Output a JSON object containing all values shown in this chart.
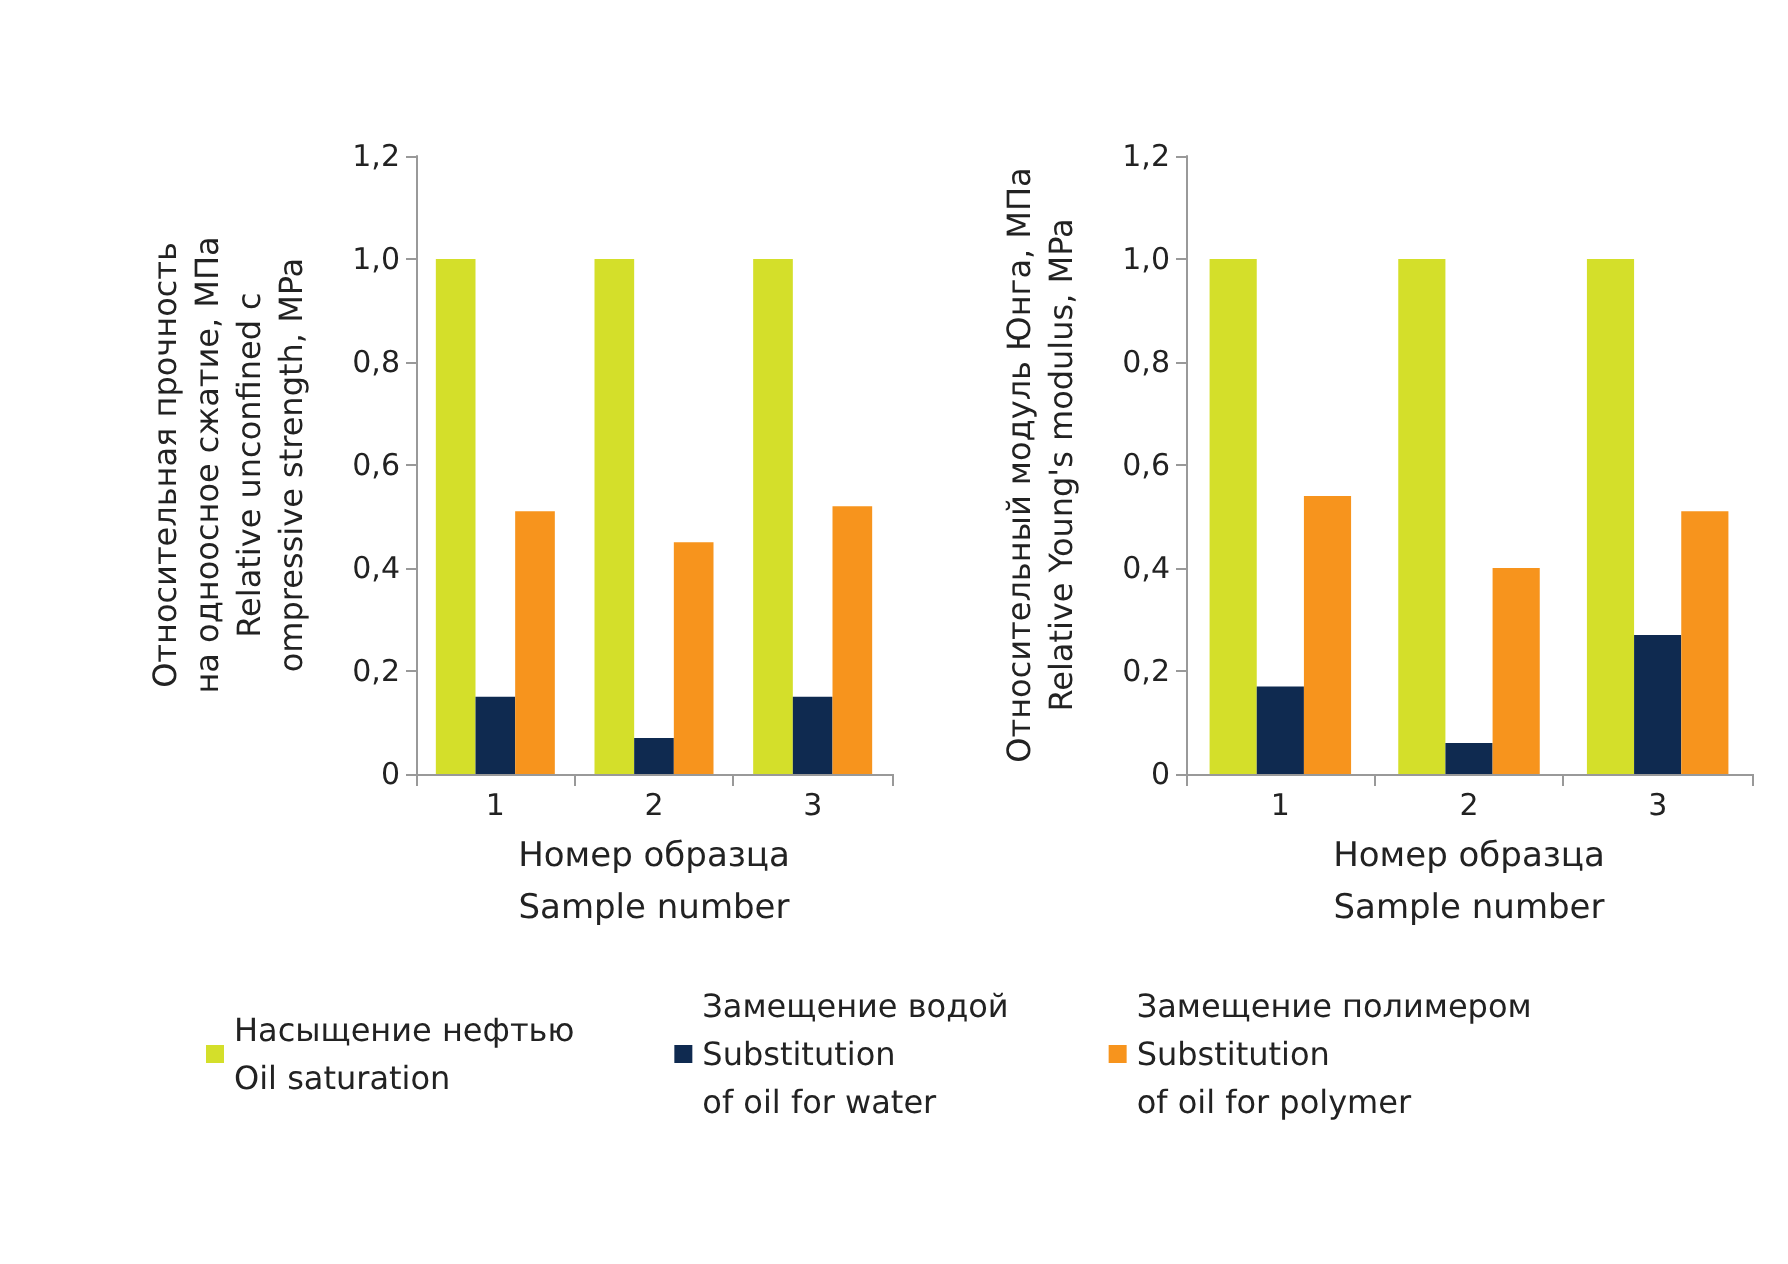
{
  "chart_data": [
    {
      "type": "bar",
      "categories": [
        "1",
        "2",
        "3"
      ],
      "xlabel": "Номер образца\nSample number",
      "ylabel": "Относительная прочность\nна одноосное сжатие, МПа\nRelative unconfined c\nompressive strength, MPa",
      "ylim": [
        0,
        1.2
      ],
      "yticks": [
        0,
        {
          "value": 0.2,
          "label": "0,2"
        },
        {
          "value": 0.4,
          "label": "0,4"
        },
        {
          "value": 0.6,
          "label": "0,6"
        },
        {
          "value": 0.8,
          "label": "0,8"
        },
        {
          "value": 1.0,
          "label": "1,0"
        },
        {
          "value": 1.2,
          "label": "1,2"
        }
      ],
      "grid": false,
      "legend": "bottom",
      "series": [
        {
          "name": "Насыщение нефтью\nOil saturation",
          "color": "#d4df2a",
          "values": [
            1.0,
            1.0,
            1.0
          ]
        },
        {
          "name": "Замещение водой\nSubstitution\nof oil for water",
          "color": "#0f2a50",
          "values": [
            0.15,
            0.07,
            0.15
          ]
        },
        {
          "name": "Замещение полимером\nSubstitution\nof oil for polymer",
          "color": "#f7941d",
          "values": [
            0.51,
            0.45,
            0.52
          ]
        }
      ]
    },
    {
      "type": "bar",
      "categories": [
        "1",
        "2",
        "3"
      ],
      "xlabel": "Номер образца\nSample number",
      "ylabel": "Относительный модуль Юнга, МПа\nRelative Young's modulus, MPa",
      "ylim": [
        0,
        1.2
      ],
      "yticks": [
        0,
        {
          "value": 0.2,
          "label": "0,2"
        },
        {
          "value": 0.4,
          "label": "0,4"
        },
        {
          "value": 0.6,
          "label": "0,6"
        },
        {
          "value": 0.8,
          "label": "0,8"
        },
        {
          "value": 1.0,
          "label": "1,0"
        },
        {
          "value": 1.2,
          "label": "1,2"
        }
      ],
      "grid": false,
      "series": [
        {
          "color": "#d4df2a",
          "values": [
            1.0,
            1.0,
            1.0
          ]
        },
        {
          "color": "#0f2a50",
          "values": [
            0.17,
            0.06,
            0.27
          ]
        },
        {
          "color": "#f7941d",
          "values": [
            0.54,
            0.4,
            0.51
          ]
        }
      ]
    }
  ]
}
